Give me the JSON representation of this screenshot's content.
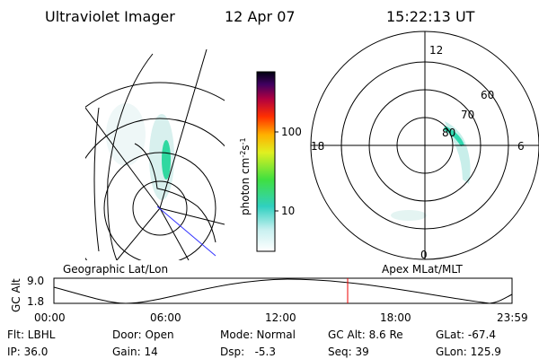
{
  "header": {
    "instrument": "Ultraviolet Imager",
    "date": "12 Apr 07",
    "time": "15:22:13 UT"
  },
  "colorbar": {
    "label": [
      "photon cm",
      "-2",
      "s",
      "-1"
    ],
    "ticks": [
      "100",
      "10"
    ]
  },
  "polar_map": {
    "mlt_labels": [
      "12",
      "6",
      "18",
      "0"
    ],
    "mlat_labels": [
      "60",
      "70",
      "80"
    ]
  },
  "altitude_plot": {
    "left_title": "Geographic Lat/Lon",
    "right_title": "Apex MLat/MLT",
    "ylabel": "GC Alt",
    "yticks": [
      "9.0",
      "1.8"
    ],
    "xticks": [
      "00:00",
      "06:00",
      "12:00",
      "18:00",
      "23:59"
    ]
  },
  "info": [
    [
      "Flt: LBHL",
      "IP: 36.0"
    ],
    [
      "Door: Open",
      "Gain: 14"
    ],
    [
      "Mode: Normal",
      "Dsp:   -5.3"
    ],
    [
      "GC Alt: 8.6 Re",
      "Seq: 39"
    ],
    [
      "GLat: -67.4",
      "GLon: 125.9"
    ]
  ]
}
